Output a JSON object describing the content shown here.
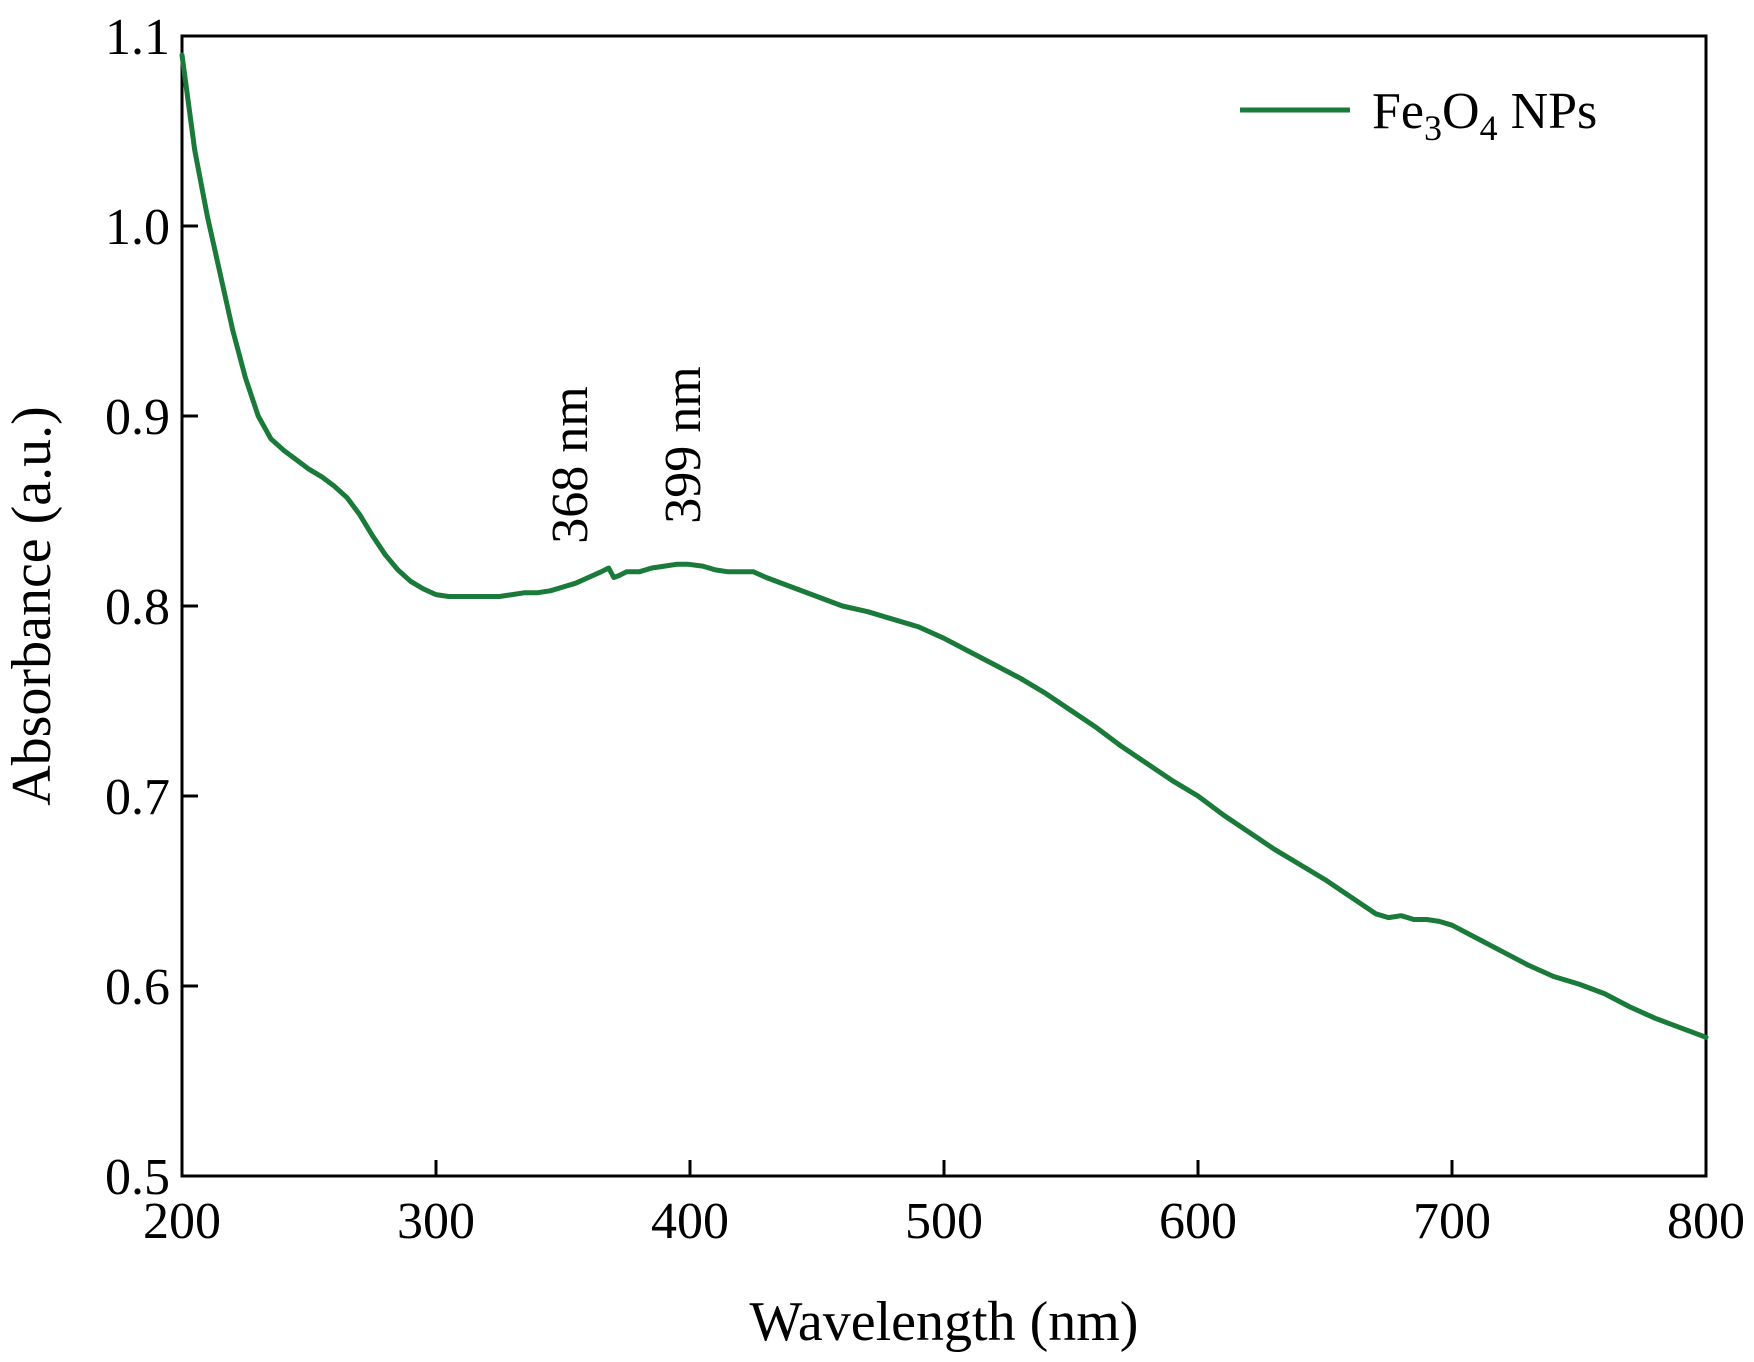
{
  "chart_data": {
    "type": "line",
    "title": "",
    "xlabel": "Wavelength (nm)",
    "ylabel": "Absorbance (a.u.)",
    "xlim": [
      200,
      800
    ],
    "ylim": [
      0.5,
      1.1
    ],
    "xticks": [
      200,
      300,
      400,
      500,
      600,
      700,
      800
    ],
    "yticks": [
      0.5,
      0.6,
      0.7,
      0.8,
      0.9,
      1.0,
      1.1
    ],
    "xtick_labels": [
      "200",
      "300",
      "400",
      "500",
      "600",
      "700",
      "800"
    ],
    "ytick_labels": [
      "0.5",
      "0.6",
      "0.7",
      "0.8",
      "0.9",
      "1.0",
      "1.1"
    ],
    "grid": false,
    "legend_position": "top-right",
    "series": [
      {
        "name": "Fe3O4 NPs",
        "color": "#1a7a3a",
        "x": [
          200,
          205,
          210,
          215,
          220,
          225,
          230,
          235,
          240,
          245,
          250,
          255,
          260,
          265,
          270,
          275,
          280,
          285,
          290,
          295,
          300,
          305,
          310,
          315,
          320,
          325,
          330,
          335,
          340,
          345,
          350,
          355,
          360,
          365,
          368,
          370,
          372,
          375,
          380,
          385,
          390,
          395,
          399,
          405,
          410,
          415,
          420,
          425,
          430,
          440,
          450,
          460,
          470,
          480,
          490,
          500,
          510,
          520,
          530,
          540,
          550,
          560,
          570,
          580,
          590,
          600,
          610,
          620,
          630,
          640,
          650,
          660,
          670,
          675,
          680,
          685,
          690,
          695,
          700,
          710,
          720,
          730,
          740,
          750,
          760,
          770,
          780,
          790,
          800
        ],
        "y": [
          1.09,
          1.04,
          1.005,
          0.975,
          0.945,
          0.92,
          0.9,
          0.888,
          0.882,
          0.877,
          0.872,
          0.868,
          0.863,
          0.857,
          0.848,
          0.837,
          0.827,
          0.819,
          0.813,
          0.809,
          0.806,
          0.805,
          0.805,
          0.805,
          0.805,
          0.805,
          0.806,
          0.807,
          0.807,
          0.808,
          0.81,
          0.812,
          0.815,
          0.818,
          0.82,
          0.815,
          0.816,
          0.818,
          0.818,
          0.82,
          0.821,
          0.822,
          0.822,
          0.821,
          0.819,
          0.818,
          0.818,
          0.818,
          0.815,
          0.81,
          0.805,
          0.8,
          0.797,
          0.793,
          0.789,
          0.783,
          0.776,
          0.769,
          0.762,
          0.754,
          0.745,
          0.736,
          0.726,
          0.717,
          0.708,
          0.7,
          0.69,
          0.681,
          0.672,
          0.664,
          0.656,
          0.647,
          0.638,
          0.636,
          0.637,
          0.635,
          0.635,
          0.634,
          0.632,
          0.625,
          0.618,
          0.611,
          0.605,
          0.601,
          0.596,
          0.589,
          0.583,
          0.578,
          0.573
        ]
      }
    ],
    "legend": {
      "label_main": "Fe",
      "sub1": "3",
      "label_mid": "O",
      "sub2": "4",
      "label_tail": " NPs"
    },
    "annotations": [
      {
        "text": "368 nm",
        "x": 368
      },
      {
        "text": "399 nm",
        "x": 399
      }
    ]
  }
}
